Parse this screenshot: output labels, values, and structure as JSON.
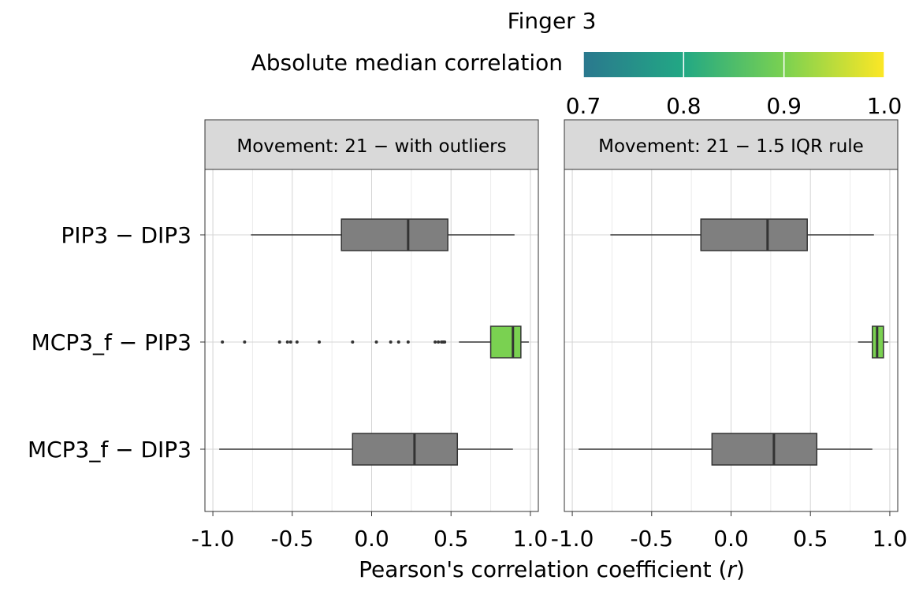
{
  "chart_data": {
    "type": "boxplot",
    "title": "Finger 3",
    "xlabel": "Pearson's correlation coefficient (",
    "xlabel_var": "r",
    "xlabel_close": ")",
    "xlim": [
      -1.05,
      1.05
    ],
    "xticks": [
      -1.0,
      -0.5,
      0.0,
      0.5,
      1.0
    ],
    "xtick_labels": [
      "-1.0",
      "-0.5",
      "0.0",
      "0.5",
      "1.0"
    ],
    "categories": [
      "PIP3 − DIP3",
      "MCP3_f − PIP3",
      "MCP3_f − DIP3"
    ],
    "legend": {
      "title": "Absolute median correlation",
      "range": [
        0.7,
        1.0
      ],
      "ticks": [
        0.7,
        0.8,
        0.9,
        1.0
      ],
      "tick_labels": [
        "0.7",
        "0.8",
        "0.9",
        "1.0"
      ],
      "colors": [
        "#2a788e",
        "#22a884",
        "#7ad151",
        "#fde725"
      ],
      "placement": "top"
    },
    "panels": [
      {
        "title": "Movement: 21 − with outliers",
        "boxes": [
          {
            "category": "PIP3 − DIP3",
            "whisker_low": -0.76,
            "q1": -0.19,
            "median": 0.23,
            "q3": 0.48,
            "whisker_high": 0.9,
            "abs_median": 0.23,
            "fill": "#7f7f7f",
            "outliers": []
          },
          {
            "category": "MCP3_f − PIP3",
            "whisker_low": 0.55,
            "q1": 0.75,
            "median": 0.89,
            "q3": 0.94,
            "whisker_high": 0.99,
            "abs_median": 0.89,
            "fill": "#7ad151",
            "outliers": [
              -0.94,
              -0.8,
              -0.58,
              -0.53,
              -0.51,
              -0.47,
              -0.33,
              -0.12,
              0.03,
              0.12,
              0.17,
              0.23,
              0.4,
              0.42,
              0.44,
              0.45,
              0.46
            ]
          },
          {
            "category": "MCP3_f − DIP3",
            "whisker_low": -0.96,
            "q1": -0.12,
            "median": 0.27,
            "q3": 0.54,
            "whisker_high": 0.89,
            "abs_median": 0.27,
            "fill": "#7f7f7f",
            "outliers": []
          }
        ]
      },
      {
        "title": "Movement: 21 − 1.5 IQR rule",
        "boxes": [
          {
            "category": "PIP3 − DIP3",
            "whisker_low": -0.76,
            "q1": -0.19,
            "median": 0.23,
            "q3": 0.48,
            "whisker_high": 0.9,
            "abs_median": 0.23,
            "fill": "#7f7f7f",
            "outliers": []
          },
          {
            "category": "MCP3_f − PIP3",
            "whisker_low": 0.8,
            "q1": 0.89,
            "median": 0.92,
            "q3": 0.96,
            "whisker_high": 0.99,
            "abs_median": 0.92,
            "fill": "#7ad151",
            "outliers": []
          },
          {
            "category": "MCP3_f − DIP3",
            "whisker_low": -0.96,
            "q1": -0.12,
            "median": 0.27,
            "q3": 0.54,
            "whisker_high": 0.89,
            "abs_median": 0.27,
            "fill": "#7f7f7f",
            "outliers": []
          }
        ]
      }
    ],
    "grid": true,
    "colors": {
      "strip_bg": "#d9d9d9",
      "grid": "#d4d4d4",
      "box_line": "#333333",
      "outlier": "#333333"
    }
  }
}
